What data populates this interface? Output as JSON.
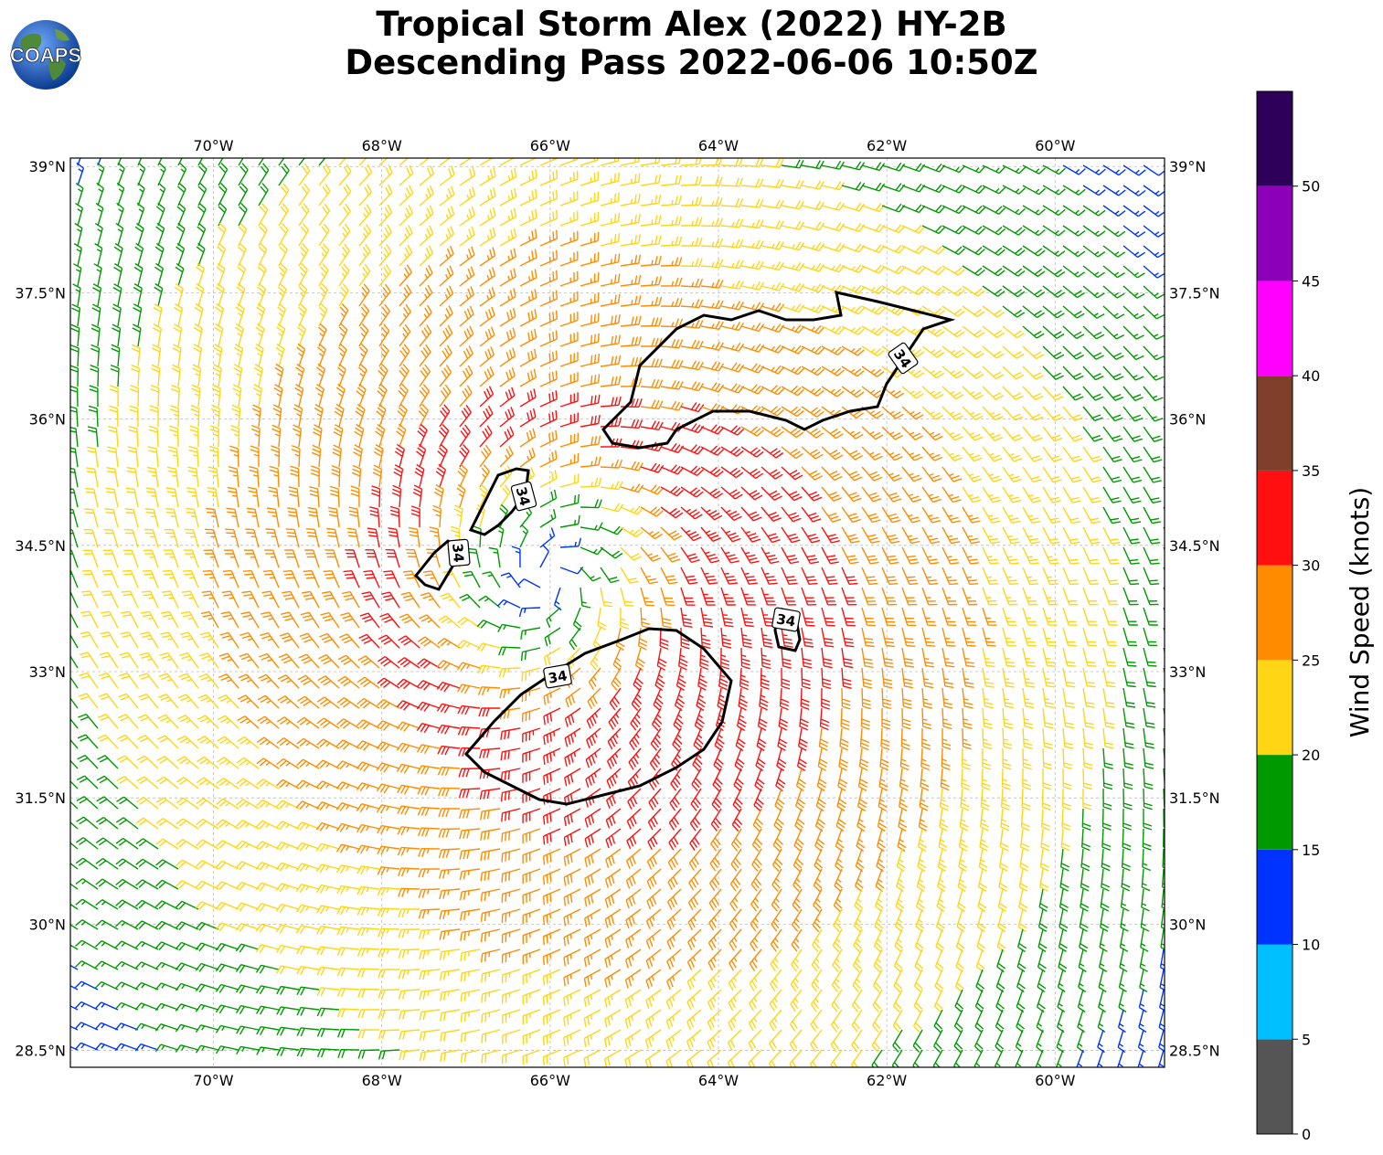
{
  "title": {
    "line1": "Tropical Storm Alex (2022) HY-2B",
    "line2": "Descending Pass 2022-06-06 10:50Z"
  },
  "logo": {
    "text": "COAPS",
    "icon": "globe-logo-icon"
  },
  "map": {
    "lon_range": [
      -71.7,
      -58.7
    ],
    "lat_range": [
      28.3,
      39.1
    ],
    "lon_ticks": [
      "70°W",
      "68°W",
      "66°W",
      "64°W",
      "62°W",
      "60°W"
    ],
    "lat_ticks": [
      "39°N",
      "37.5°N",
      "36°N",
      "34.5°N",
      "33°N",
      "31.5°N",
      "30°N",
      "28.5°N"
    ],
    "gridlines": true,
    "storm_center": {
      "lon": -66.0,
      "lat": 34.1
    },
    "contour_level_label": "34",
    "contour_labels": [
      "34",
      "34",
      "34",
      "34",
      "34"
    ]
  },
  "colorbar": {
    "title": "Wind Speed (knots)",
    "tick_labels": [
      "0",
      "5",
      "10",
      "15",
      "20",
      "25",
      "30",
      "35",
      "40",
      "45",
      "50"
    ],
    "bins": [
      {
        "min": 0,
        "max": 5,
        "color": "#555555"
      },
      {
        "min": 5,
        "max": 10,
        "color": "#00bfff"
      },
      {
        "min": 10,
        "max": 15,
        "color": "#0033ff"
      },
      {
        "min": 15,
        "max": 20,
        "color": "#009900"
      },
      {
        "min": 20,
        "max": 25,
        "color": "#ffd514"
      },
      {
        "min": 25,
        "max": 30,
        "color": "#ff8c00"
      },
      {
        "min": 30,
        "max": 35,
        "color": "#ff0f0f"
      },
      {
        "min": 35,
        "max": 40,
        "color": "#7f3f2a"
      },
      {
        "min": 40,
        "max": 45,
        "color": "#ff00ff"
      },
      {
        "min": 45,
        "max": 50,
        "color": "#8b00b8"
      },
      {
        "min": 50,
        "max": 55,
        "color": "#2e005a"
      }
    ]
  }
}
